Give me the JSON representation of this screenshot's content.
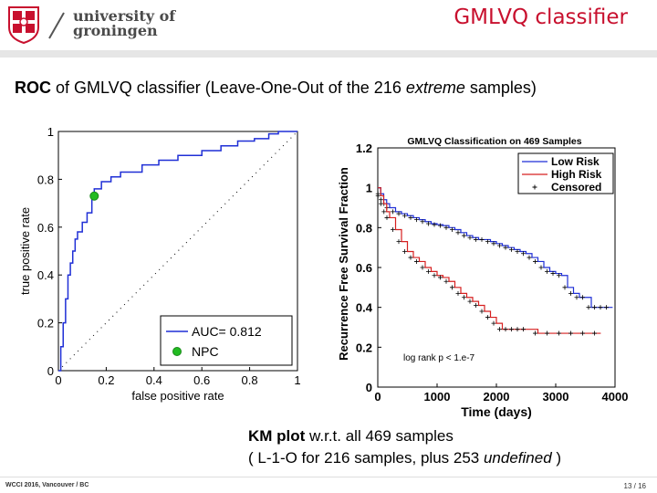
{
  "header": {
    "university_line1": "university of",
    "university_line2": "groningen",
    "slide_title": "GMLVQ classifier"
  },
  "subtitle": {
    "bold": "ROC",
    "part1": " of GMLVQ classifier   (Leave-One-Out of the 216 ",
    "italic": "extreme",
    "part2": " samples)"
  },
  "caption": {
    "line1_bold": "KM plot",
    "line1_rest": " w.r.t. all 469 samples",
    "line2_pre": "( L-1-O for 216 samples, plus 253 ",
    "line2_italic": "undefined",
    "line2_post": " )"
  },
  "footer": {
    "left": "WCCI 2016, Vancouver / BC",
    "right": "13 / 16"
  },
  "colors": {
    "title_red": "#c8102e",
    "roc_curve": "#1f2fd6",
    "npc_marker": "#22bb22",
    "low_risk": "#1f2fd6",
    "high_risk": "#d62020"
  },
  "chart_data": [
    {
      "type": "line",
      "title": "",
      "xlabel": "false positive rate",
      "ylabel": "true positive rate",
      "xlim": [
        0,
        1
      ],
      "ylim": [
        0,
        1
      ],
      "xticks": [
        "0",
        "0.2",
        "0.4",
        "0.6",
        "0.8",
        "1"
      ],
      "yticks": [
        "0",
        "0.2",
        "0.4",
        "0.6",
        "0.8",
        "1"
      ],
      "diagonal": true,
      "legend_position": "bottom-right",
      "legend": [
        "AUC= 0.812",
        "NPC"
      ],
      "roc_curve": [
        [
          0.0,
          0.0
        ],
        [
          0.01,
          0.0
        ],
        [
          0.01,
          0.1
        ],
        [
          0.02,
          0.1
        ],
        [
          0.02,
          0.2
        ],
        [
          0.03,
          0.2
        ],
        [
          0.03,
          0.3
        ],
        [
          0.04,
          0.3
        ],
        [
          0.04,
          0.4
        ],
        [
          0.05,
          0.4
        ],
        [
          0.05,
          0.45
        ],
        [
          0.06,
          0.45
        ],
        [
          0.06,
          0.5
        ],
        [
          0.07,
          0.5
        ],
        [
          0.07,
          0.55
        ],
        [
          0.08,
          0.55
        ],
        [
          0.08,
          0.58
        ],
        [
          0.1,
          0.58
        ],
        [
          0.1,
          0.62
        ],
        [
          0.12,
          0.62
        ],
        [
          0.12,
          0.66
        ],
        [
          0.14,
          0.66
        ],
        [
          0.14,
          0.72
        ],
        [
          0.15,
          0.72
        ],
        [
          0.15,
          0.76
        ],
        [
          0.18,
          0.76
        ],
        [
          0.18,
          0.79
        ],
        [
          0.22,
          0.79
        ],
        [
          0.22,
          0.81
        ],
        [
          0.26,
          0.81
        ],
        [
          0.26,
          0.83
        ],
        [
          0.35,
          0.83
        ],
        [
          0.35,
          0.86
        ],
        [
          0.42,
          0.86
        ],
        [
          0.42,
          0.88
        ],
        [
          0.5,
          0.88
        ],
        [
          0.5,
          0.9
        ],
        [
          0.6,
          0.9
        ],
        [
          0.6,
          0.92
        ],
        [
          0.68,
          0.92
        ],
        [
          0.68,
          0.94
        ],
        [
          0.75,
          0.94
        ],
        [
          0.75,
          0.96
        ],
        [
          0.82,
          0.96
        ],
        [
          0.82,
          0.97
        ],
        [
          0.88,
          0.97
        ],
        [
          0.88,
          0.99
        ],
        [
          0.92,
          0.99
        ],
        [
          0.92,
          1.0
        ],
        [
          1.0,
          1.0
        ]
      ],
      "npc_point": [
        0.15,
        0.73
      ]
    },
    {
      "type": "line",
      "title": "GMLVQ Classification on 469 Samples",
      "xlabel": "Time (days)",
      "ylabel": "Recurrence Free Survival Fraction",
      "xlim": [
        0,
        4000
      ],
      "ylim": [
        0,
        1.2
      ],
      "xticks": [
        "0",
        "1000",
        "2000",
        "3000",
        "4000"
      ],
      "yticks": [
        "0",
        "0.2",
        "0.4",
        "0.6",
        "0.8",
        "1",
        "1.2"
      ],
      "legend_position": "top-right",
      "legend": [
        "Low Risk",
        "High Risk",
        "Censored"
      ],
      "annotation": "log rank p < 1.e-7",
      "series": [
        {
          "name": "Low Risk",
          "x": [
            0,
            50,
            100,
            150,
            200,
            300,
            400,
            500,
            600,
            700,
            800,
            900,
            1000,
            1100,
            1200,
            1300,
            1400,
            1500,
            1600,
            1700,
            1800,
            1900,
            2000,
            2100,
            2200,
            2300,
            2400,
            2500,
            2600,
            2700,
            2800,
            2900,
            3000,
            3100,
            3200,
            3300,
            3400,
            3500,
            3600,
            3700,
            3800,
            3900
          ],
          "y": [
            1.0,
            0.97,
            0.94,
            0.92,
            0.9,
            0.88,
            0.87,
            0.86,
            0.85,
            0.84,
            0.83,
            0.82,
            0.815,
            0.81,
            0.8,
            0.79,
            0.775,
            0.76,
            0.75,
            0.74,
            0.74,
            0.73,
            0.72,
            0.71,
            0.7,
            0.69,
            0.68,
            0.67,
            0.65,
            0.63,
            0.6,
            0.58,
            0.57,
            0.56,
            0.5,
            0.47,
            0.45,
            0.45,
            0.4,
            0.4,
            0.4,
            0.4
          ]
        },
        {
          "name": "High Risk",
          "x": [
            0,
            50,
            100,
            150,
            200,
            300,
            400,
            500,
            600,
            700,
            800,
            900,
            1000,
            1100,
            1200,
            1300,
            1400,
            1500,
            1600,
            1700,
            1800,
            1900,
            2000,
            2100,
            2200,
            2300,
            2400,
            2500,
            2700,
            2900,
            3100,
            3300,
            3500,
            3700
          ],
          "y": [
            1.0,
            0.96,
            0.92,
            0.88,
            0.85,
            0.79,
            0.73,
            0.68,
            0.65,
            0.63,
            0.6,
            0.58,
            0.56,
            0.55,
            0.53,
            0.5,
            0.47,
            0.45,
            0.43,
            0.41,
            0.38,
            0.35,
            0.32,
            0.29,
            0.29,
            0.29,
            0.29,
            0.29,
            0.27,
            0.27,
            0.27,
            0.27,
            0.27,
            0.27
          ]
        }
      ]
    }
  ]
}
